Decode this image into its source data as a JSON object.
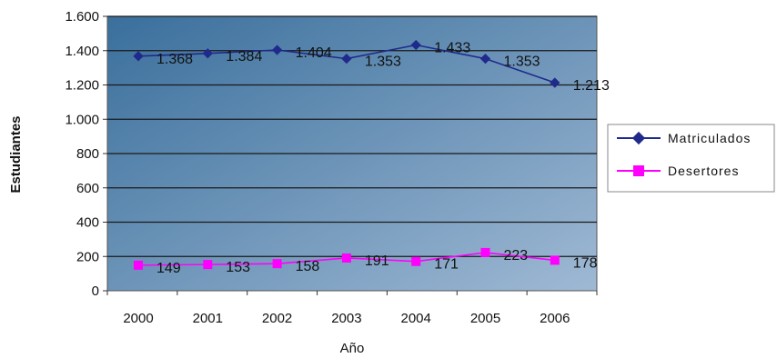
{
  "chart_data": {
    "type": "line",
    "categories": [
      "2000",
      "2001",
      "2002",
      "2003",
      "2004",
      "2005",
      "2006"
    ],
    "series": [
      {
        "name": "Matriculados",
        "values": [
          1368,
          1384,
          1404,
          1353,
          1433,
          1353,
          1213
        ],
        "labels": [
          "1.368",
          "1.384",
          "1.404",
          "1.353",
          "1.433",
          "1.353",
          "1.213"
        ],
        "color": "#1f2a8c",
        "marker": "diamond"
      },
      {
        "name": "Desertores",
        "values": [
          149,
          153,
          158,
          191,
          171,
          223,
          178
        ],
        "labels": [
          "149",
          "153",
          "158",
          "191",
          "171",
          "223",
          "178"
        ],
        "color": "#ff00ff",
        "marker": "square"
      }
    ],
    "xlabel": "Año",
    "ylabel": "Estudiantes",
    "ylim": [
      0,
      1600
    ],
    "yticks": [
      0,
      200,
      400,
      600,
      800,
      1000,
      1200,
      1400,
      1600
    ],
    "ytick_labels": [
      "0",
      "200",
      "400",
      "600",
      "800",
      "1.000",
      "1.200",
      "1.400",
      "1.600"
    ],
    "grid": true,
    "legend_position": "right",
    "plot_background": [
      "#3a6f9c",
      "#9fb9d4"
    ]
  }
}
